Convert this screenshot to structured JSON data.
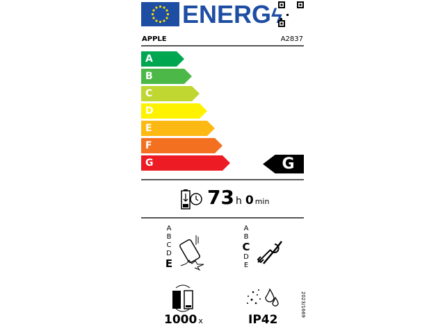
{
  "header": {
    "title": "ENERG",
    "brand": "APPLE",
    "model": "A2837"
  },
  "energy_scale": {
    "classes": [
      "A",
      "B",
      "C",
      "D",
      "E",
      "F",
      "G"
    ],
    "colors": [
      "#00a650",
      "#4cb848",
      "#bfd730",
      "#fff200",
      "#fdb913",
      "#f37021",
      "#ed1c24"
    ],
    "rating": "G"
  },
  "battery": {
    "hours": "73",
    "hours_unit": "h",
    "minutes": "0",
    "minutes_unit": "min"
  },
  "drop_resistance": {
    "scale": [
      "A",
      "B",
      "C",
      "D",
      "E"
    ],
    "rating": "E"
  },
  "repairability": {
    "scale": [
      "A",
      "B",
      "C",
      "D",
      "E"
    ],
    "rating": "C"
  },
  "battery_cycles": {
    "value": "1000",
    "unit": "x"
  },
  "ingress_protection": {
    "value": "IP42"
  },
  "regulation": "2023/1669"
}
